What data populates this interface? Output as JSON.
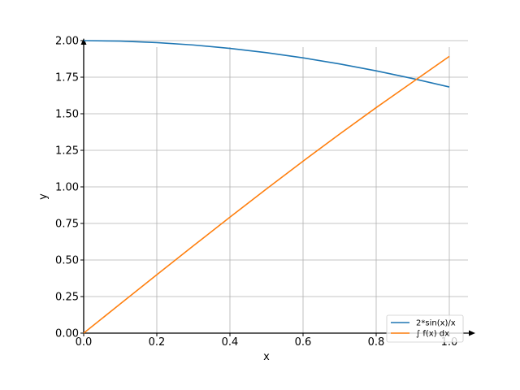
{
  "chart_data": {
    "type": "line",
    "title": "",
    "xlabel": "x",
    "ylabel": "y",
    "xlim": [
      0.0,
      1.0
    ],
    "ylim": [
      0.0,
      2.1
    ],
    "grid": true,
    "legend_position": "bottom-right",
    "x_ticks": [
      "0.0",
      "0.2",
      "0.4",
      "0.6",
      "0.8",
      "1.0"
    ],
    "y_ticks": [
      "0.00",
      "0.25",
      "0.50",
      "0.75",
      "1.00",
      "1.25",
      "1.50",
      "1.75",
      "2.00"
    ],
    "series": [
      {
        "name": "2*sin(x)/x",
        "color": "#1f77b4",
        "x": [
          0.0,
          0.1,
          0.2,
          0.3,
          0.4,
          0.5,
          0.6,
          0.7,
          0.8,
          0.9,
          1.0
        ],
        "y": [
          2.0,
          1.9967,
          1.9867,
          1.9701,
          1.947,
          1.9177,
          1.8821,
          1.8405,
          1.7934,
          1.7405,
          1.6829
        ]
      },
      {
        "name": "∫ f(x) dx",
        "color": "#ff7f0e",
        "x": [
          0.0,
          0.1,
          0.2,
          0.3,
          0.4,
          0.5,
          0.6,
          0.7,
          0.8,
          0.9,
          1.0
        ],
        "y": [
          0.0,
          0.1999,
          0.3991,
          0.597,
          0.7929,
          0.9861,
          1.1758,
          1.3613,
          1.542,
          1.7172,
          1.8922
        ]
      }
    ]
  }
}
